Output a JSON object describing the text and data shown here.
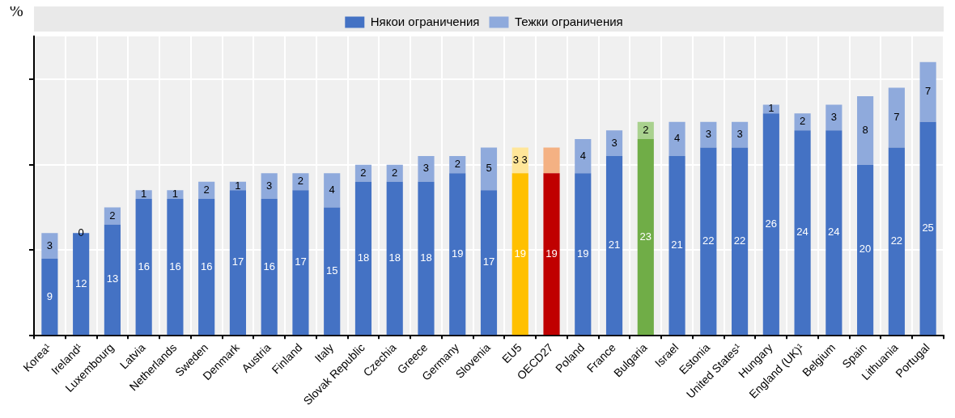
{
  "chart_data": {
    "type": "bar",
    "stacked": true,
    "ylabel": "%",
    "legend": "top",
    "grid": true,
    "categories": [
      "Korea¹",
      "Ireland¹",
      "Luxembourg",
      "Latvia",
      "Netherlands",
      "Sweden",
      "Denmark",
      "Austria",
      "Finland",
      "Italy",
      "Slovak Republic",
      "Czechia",
      "Greece",
      "Germany",
      "Slovenia",
      "EU5",
      "OECD27",
      "Poland",
      "France",
      "Bulgaria",
      "Israel",
      "Estonia",
      "United States¹",
      "Hungary",
      "England (UK)¹",
      "Belgium",
      "Spain",
      "Lithuania",
      "Portugal"
    ],
    "ylim": [
      0,
      35
    ],
    "yticks": [
      {
        "value": 0,
        "label": null
      },
      {
        "value": 10,
        "label": null
      },
      {
        "value": 20,
        "label": null
      },
      {
        "value": 30,
        "label": null
      }
    ],
    "series": [
      {
        "name": "Някои ограничения",
        "color": "#4472c4",
        "colors": [
          "#4472c4",
          "#4472c4",
          "#4472c4",
          "#4472c4",
          "#4472c4",
          "#4472c4",
          "#4472c4",
          "#4472c4",
          "#4472c4",
          "#4472c4",
          "#4472c4",
          "#4472c4",
          "#4472c4",
          "#4472c4",
          "#4472c4",
          "#ffc000",
          "#c00000",
          "#4472c4",
          "#4472c4",
          "#70ad47",
          "#4472c4",
          "#4472c4",
          "#4472c4",
          "#4472c4",
          "#4472c4",
          "#4472c4",
          "#4472c4",
          "#4472c4",
          "#4472c4"
        ],
        "values": [
          9,
          12,
          13,
          16,
          16,
          16,
          17,
          16,
          17,
          15,
          18,
          18,
          18,
          19,
          17,
          19,
          19,
          19,
          21,
          23,
          21,
          22,
          22,
          26,
          24,
          24,
          20,
          22,
          25
        ],
        "value_labels": [
          "9",
          "12",
          "13",
          "16",
          "16",
          "16",
          "17",
          "16",
          "17",
          "15",
          "18",
          "18",
          "18",
          "19",
          "17",
          "19",
          "19",
          "19",
          "21",
          "23",
          "21",
          "22",
          "22",
          "26",
          "24",
          "24",
          "20",
          "22",
          "25"
        ]
      },
      {
        "name": "Тежки ограничения",
        "color": "#8faadc",
        "colors": [
          "#8faadc",
          "#8faadc",
          "#8faadc",
          "#8faadc",
          "#8faadc",
          "#8faadc",
          "#8faadc",
          "#8faadc",
          "#8faadc",
          "#8faadc",
          "#8faadc",
          "#8faadc",
          "#8faadc",
          "#8faadc",
          "#8faadc",
          "#ffe699",
          "#f4b183",
          "#8faadc",
          "#8faadc",
          "#a9d18e",
          "#8faadc",
          "#8faadc",
          "#8faadc",
          "#8faadc",
          "#8faadc",
          "#8faadc",
          "#8faadc",
          "#8faadc",
          "#8faadc"
        ],
        "values": [
          3,
          0,
          2,
          1,
          1,
          2,
          1,
          3,
          2,
          4,
          2,
          2,
          3,
          2,
          5,
          3,
          3,
          4,
          3,
          2,
          4,
          3,
          3,
          1,
          2,
          3,
          8,
          7,
          7
        ],
        "value_labels": [
          "3",
          "0",
          "2",
          "1",
          "1",
          "2",
          "1",
          "3",
          "2",
          "4",
          "2",
          "2",
          "3",
          "2",
          "5",
          "3 3",
          null,
          "4",
          "3",
          "2",
          "4",
          "3",
          "3",
          "1",
          "2",
          "3",
          "8",
          "7",
          "7"
        ]
      }
    ]
  }
}
